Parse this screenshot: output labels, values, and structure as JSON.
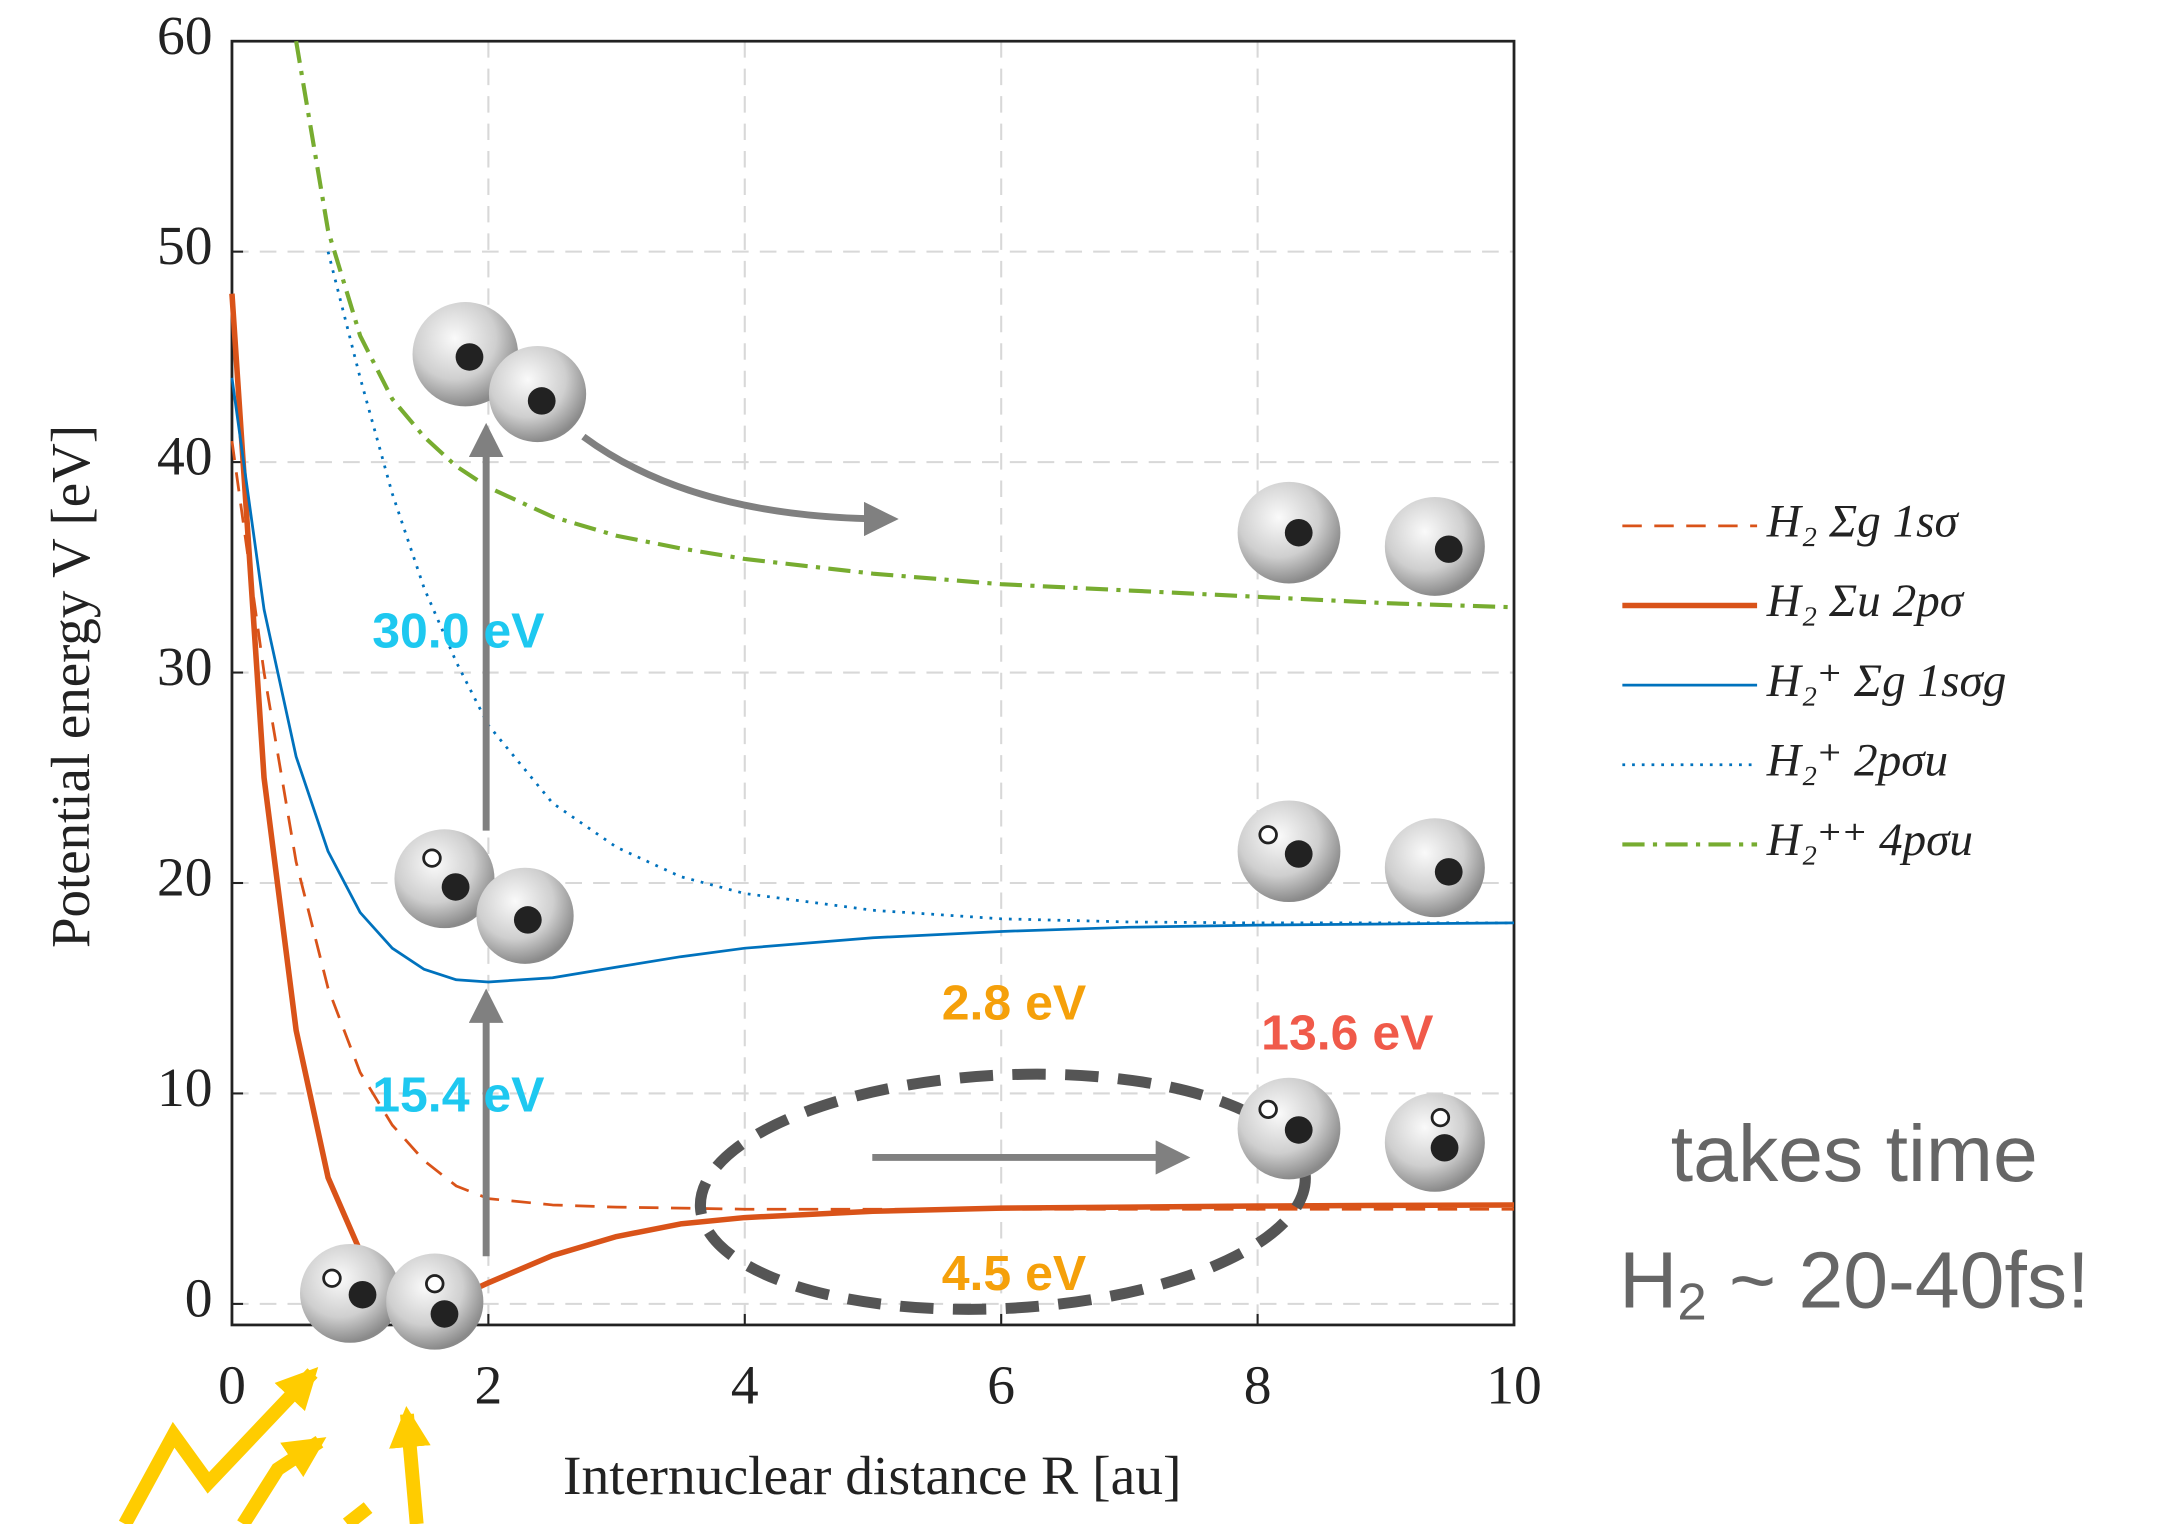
{
  "chart_data": {
    "type": "line",
    "xlabel": "Internuclear distance R [au]",
    "ylabel": "Potential energy V [eV]",
    "x": [
      0,
      0.25,
      0.5,
      0.75,
      1,
      1.25,
      1.5,
      1.75,
      2,
      2.5,
      3,
      3.5,
      4,
      5,
      6,
      7,
      8,
      9,
      10
    ],
    "xlim": [
      0,
      10
    ],
    "xticks": [
      0,
      2,
      4,
      6,
      8,
      10
    ],
    "ylim": [
      -1,
      60
    ],
    "yticks": [
      0,
      10,
      20,
      30,
      40,
      50,
      60
    ],
    "grid": true,
    "legend": "right",
    "series": [
      {
        "name": "H₂ Σg 1sσ",
        "color": "#d95319",
        "style": "dashed",
        "width": 2,
        "values": [
          41,
          30,
          21,
          15,
          11,
          8.5,
          6.8,
          5.6,
          5.0,
          4.7,
          4.6,
          4.55,
          4.5,
          4.5,
          4.5,
          4.5,
          4.5,
          4.5,
          4.5
        ]
      },
      {
        "name": "H₂ Σu 2pσ",
        "color": "#d95319",
        "style": "solid",
        "width": 4,
        "values": [
          48,
          25,
          13,
          6,
          2.5,
          0.8,
          0.3,
          0.3,
          1.0,
          2.3,
          3.2,
          3.8,
          4.1,
          4.4,
          4.55,
          4.6,
          4.65,
          4.68,
          4.7
        ]
      },
      {
        "name": "H₂⁺ Σg 1sσg",
        "color": "#0072bd",
        "style": "solid",
        "width": 2,
        "values": [
          44,
          33,
          26,
          21.5,
          18.6,
          16.9,
          15.9,
          15.4,
          15.3,
          15.5,
          16.0,
          16.5,
          16.9,
          17.4,
          17.7,
          17.9,
          18.0,
          18.05,
          18.1
        ]
      },
      {
        "name": "H₂⁺ 2pσu",
        "color": "#0072bd",
        "style": "dotted",
        "width": 2,
        "values": [
          null,
          null,
          null,
          50,
          44,
          38.5,
          34,
          30.5,
          27.5,
          23.8,
          21.7,
          20.3,
          19.5,
          18.7,
          18.3,
          18.15,
          18.1,
          18.1,
          18.1
        ]
      },
      {
        "name": "H₂⁺⁺ 4pσu",
        "color": "#77ac30",
        "style": "dashdot",
        "width": 3,
        "values": [
          null,
          null,
          60,
          51,
          46,
          43,
          41.2,
          39.8,
          38.8,
          37.4,
          36.5,
          35.9,
          35.4,
          34.7,
          34.2,
          33.9,
          33.6,
          33.3,
          33.1
        ]
      }
    ],
    "annotations": [
      {
        "text": "30.0 eV",
        "color": "#1ec8f0"
      },
      {
        "text": "15.4 eV",
        "color": "#1ec8f0"
      },
      {
        "text": "2.8 eV",
        "color": "#f5a00a"
      },
      {
        "text": "13.6 eV",
        "color": "#f05a4a"
      },
      {
        "text": "4.5 eV",
        "color": "#f5a00a"
      }
    ],
    "note": {
      "line1": "takes time",
      "line2_main": "H",
      "line2_sub": "2",
      "line2_rest": " ~ 20-40fs!"
    }
  }
}
